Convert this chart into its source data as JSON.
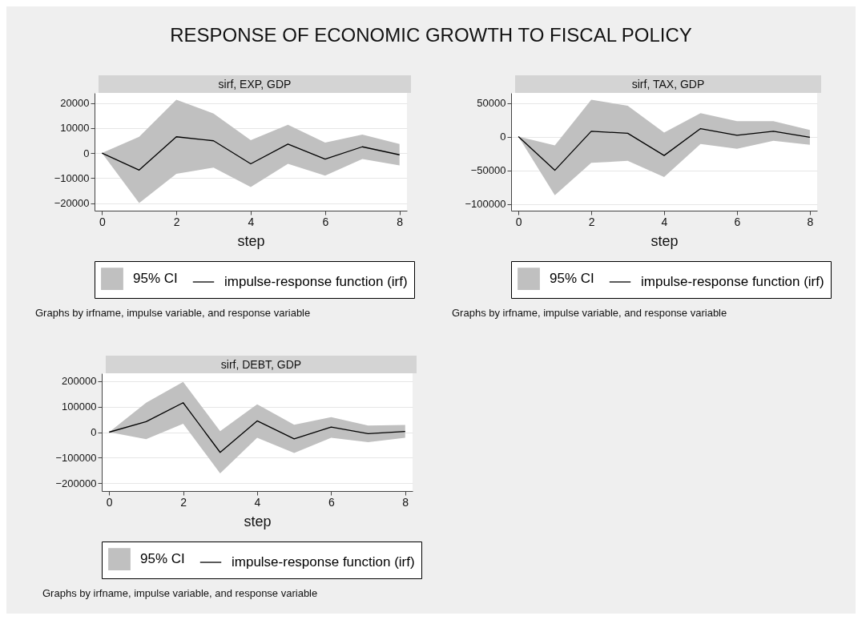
{
  "chart_data": [
    {
      "type": "other",
      "title": "RESPONSE OF ECONOMIC GROWTH TO FISCAL POLICY"
    },
    {
      "type": "line",
      "title": "sirf, EXP, GDP",
      "xlabel": "step",
      "x": [
        0,
        1,
        2,
        3,
        4,
        5,
        6,
        7,
        8
      ],
      "xlim": [
        -0.2,
        8.2
      ],
      "xticks": [
        0,
        2,
        4,
        6,
        8
      ],
      "ylim": [
        -23000,
        24000
      ],
      "yticks": [
        -20000,
        -10000,
        0,
        10000,
        20000
      ],
      "grid": "y",
      "legend": "bottom",
      "annotations": [
        "Graphs by irfname, impulse variable, and response variable"
      ],
      "series": [
        {
          "name": "95% CI",
          "type": "area",
          "color": "#c0c0c0",
          "values": [
            null,
            null,
            null,
            null,
            null,
            null,
            null,
            null,
            null
          ],
          "lower": [
            0,
            -20000,
            -8300,
            -5800,
            -13600,
            -4300,
            -9000,
            -2400,
            -4900
          ],
          "upper": [
            0,
            6500,
            21300,
            15800,
            5100,
            11300,
            4200,
            7400,
            3600
          ]
        },
        {
          "name": "impulse-response function (irf)",
          "type": "line",
          "color": "#000000",
          "values": [
            0,
            -6800,
            6500,
            4900,
            -4300,
            3600,
            -2400,
            2500,
            -700
          ]
        }
      ]
    },
    {
      "type": "line",
      "title": "sirf, TAX, GDP",
      "xlabel": "step",
      "x": [
        0,
        1,
        2,
        3,
        4,
        5,
        6,
        7,
        8
      ],
      "xlim": [
        -0.2,
        8.2
      ],
      "xticks": [
        0,
        2,
        4,
        6,
        8
      ],
      "ylim": [
        -110000,
        65000
      ],
      "yticks": [
        -100000,
        -50000,
        0,
        50000
      ],
      "grid": "y",
      "legend": "bottom",
      "annotations": [
        "Graphs by irfname, impulse variable, and response variable"
      ],
      "series": [
        {
          "name": "95% CI",
          "type": "area",
          "color": "#c0c0c0",
          "values": [
            null,
            null,
            null,
            null,
            null,
            null,
            null,
            null,
            null
          ],
          "lower": [
            0,
            -87000,
            -39000,
            -36000,
            -60000,
            -11000,
            -18000,
            -6000,
            -12000
          ],
          "upper": [
            0,
            -13000,
            55000,
            46000,
            6000,
            35000,
            23000,
            23000,
            10000
          ]
        },
        {
          "name": "impulse-response function (irf)",
          "type": "line",
          "color": "#000000",
          "values": [
            0,
            -50000,
            8000,
            5000,
            -28000,
            12000,
            2000,
            8000,
            -1000
          ]
        }
      ]
    },
    {
      "type": "line",
      "title": "sirf, DEBT, GDP",
      "xlabel": "step",
      "x": [
        0,
        1,
        2,
        3,
        4,
        5,
        6,
        7,
        8
      ],
      "xlim": [
        -0.2,
        8.2
      ],
      "xticks": [
        0,
        2,
        4,
        6,
        8
      ],
      "ylim": [
        -230000,
        230000
      ],
      "yticks": [
        -200000,
        -100000,
        0,
        100000,
        200000
      ],
      "grid": "y",
      "legend": "bottom",
      "annotations": [
        "Graphs by irfname, impulse variable, and response variable"
      ],
      "series": [
        {
          "name": "95% CI",
          "type": "area",
          "color": "#c0c0c0",
          "values": [
            null,
            null,
            null,
            null,
            null,
            null,
            null,
            null,
            null
          ],
          "lower": [
            0,
            -27000,
            33000,
            -161000,
            -22000,
            -81000,
            -22000,
            -39000,
            -22000
          ],
          "upper": [
            0,
            115000,
            196000,
            4000,
            109000,
            29000,
            59000,
            26000,
            28000
          ]
        },
        {
          "name": "impulse-response function (irf)",
          "type": "line",
          "color": "#000000",
          "values": [
            0,
            41000,
            115000,
            -79000,
            44000,
            -26000,
            20000,
            -6000,
            3000
          ]
        }
      ]
    }
  ]
}
